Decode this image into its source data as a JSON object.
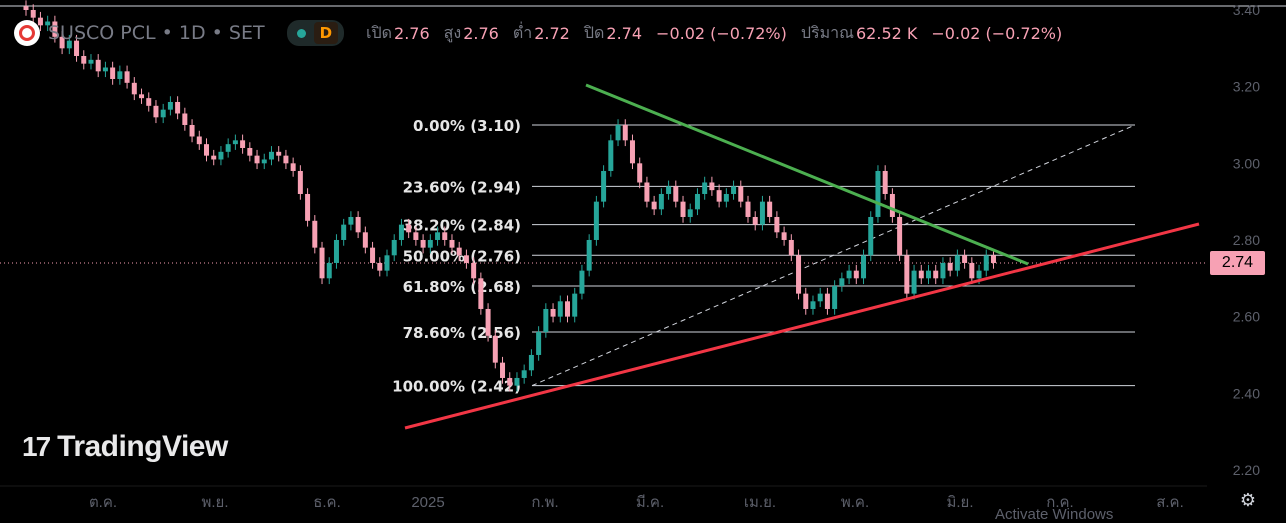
{
  "header": {
    "symbol": "SUSCO PCL • 1D • SET",
    "badge": "D",
    "open_label": "เปิด",
    "open": "2.76",
    "high_label": "สูง",
    "high": "2.76",
    "low_label": "ต่ำ",
    "low": "2.72",
    "close_label": "ปิด",
    "close": "2.74",
    "change": "−0.02 (−0.72%)",
    "volume_label": "ปริมาณ",
    "volume": "62.52 K",
    "volume_change": "−0.02 (−0.72%)"
  },
  "watermark": "TradingView",
  "price_tag": "2.74",
  "activate_text": "Activate Windows",
  "colors": {
    "up": "#26a69a",
    "down": "#f7a1b4",
    "resistance": "#4caf50",
    "support": "#f23645",
    "fib_line": "#d1d4dc"
  },
  "chart_data": {
    "type": "candlestick",
    "y_axis": {
      "range": [
        2.2,
        3.4
      ],
      "ticks": [
        "3.40",
        "3.20",
        "3.00",
        "2.80",
        "2.60",
        "2.40",
        "2.20"
      ]
    },
    "x_axis": {
      "labels": [
        "ต.ค.",
        "พ.ย.",
        "ธ.ค.",
        "2025",
        "ก.พ.",
        "มี.ค.",
        "เม.ย.",
        "พ.ค.",
        "มิ.ย.",
        "ก.ค.",
        "ส.ค."
      ]
    },
    "last_price": 2.74,
    "fibonacci": [
      {
        "label": "0.00% (3.10)",
        "price": 3.1
      },
      {
        "label": "23.60% (2.94)",
        "price": 2.94
      },
      {
        "label": "38.20% (2.84)",
        "price": 2.84
      },
      {
        "label": "50.00% (2.76)",
        "price": 2.76
      },
      {
        "label": "61.80% (2.68)",
        "price": 2.68
      },
      {
        "label": "78.60% (2.56)",
        "price": 2.56
      },
      {
        "label": "100.00% (2.42)",
        "price": 2.42
      }
    ],
    "closes": [
      3.4,
      3.38,
      3.36,
      3.37,
      3.33,
      3.3,
      3.32,
      3.28,
      3.26,
      3.27,
      3.24,
      3.25,
      3.22,
      3.24,
      3.21,
      3.18,
      3.17,
      3.15,
      3.12,
      3.14,
      3.16,
      3.13,
      3.1,
      3.07,
      3.05,
      3.02,
      3.01,
      3.03,
      3.05,
      3.06,
      3.04,
      3.02,
      3.0,
      3.01,
      3.03,
      3.02,
      3.0,
      2.98,
      2.92,
      2.85,
      2.78,
      2.7,
      2.74,
      2.8,
      2.84,
      2.86,
      2.82,
      2.78,
      2.74,
      2.72,
      2.76,
      2.8,
      2.84,
      2.82,
      2.8,
      2.78,
      2.8,
      2.82,
      2.8,
      2.78,
      2.76,
      2.74,
      2.7,
      2.62,
      2.55,
      2.48,
      2.44,
      2.42,
      2.44,
      2.46,
      2.5,
      2.56,
      2.62,
      2.6,
      2.64,
      2.6,
      2.66,
      2.72,
      2.8,
      2.9,
      2.98,
      3.06,
      3.1,
      3.06,
      3.0,
      2.95,
      2.9,
      2.88,
      2.92,
      2.94,
      2.9,
      2.86,
      2.88,
      2.92,
      2.95,
      2.93,
      2.9,
      2.92,
      2.94,
      2.9,
      2.86,
      2.84,
      2.9,
      2.86,
      2.82,
      2.8,
      2.76,
      2.66,
      2.62,
      2.64,
      2.66,
      2.62,
      2.68,
      2.7,
      2.72,
      2.7,
      2.76,
      2.86,
      2.98,
      2.92,
      2.86,
      2.76,
      2.66,
      2.72,
      2.7,
      2.72,
      2.7,
      2.74,
      2.72,
      2.76,
      2.74,
      2.7,
      2.72,
      2.76,
      2.74
    ],
    "trendlines": [
      {
        "name": "resistance",
        "from": {
          "x_index": 68,
          "price": 3.22
        },
        "to": {
          "x_index": 126,
          "price": 2.75
        }
      },
      {
        "name": "support",
        "from": {
          "x_index": 48,
          "price": 2.3
        },
        "to": {
          "x_index": 145,
          "price": 2.84
        }
      }
    ]
  }
}
